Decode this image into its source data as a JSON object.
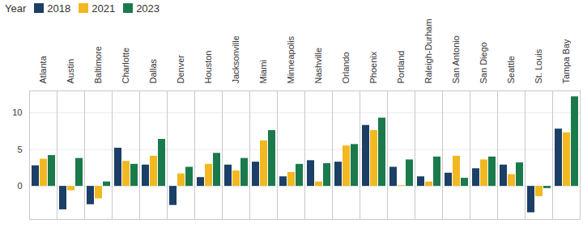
{
  "chart_data": {
    "type": "bar",
    "legend_title": "Year",
    "legend": "top-left",
    "grid": true,
    "categories": [
      "Atlanta",
      "Austin",
      "Baltimore",
      "Charlotte",
      "Dallas",
      "Denver",
      "Houston",
      "Jacksonville",
      "Miami",
      "Minneapolis",
      "Nashville",
      "Orlando",
      "Phoenix",
      "Portland",
      "Raleigh-Durham",
      "San Antonio",
      "San Diego",
      "Seattle",
      "St. Louis",
      "Tampa Bay"
    ],
    "series": [
      {
        "name": "2018",
        "color": "#1b3f66",
        "values": [
          2.8,
          -3.2,
          -2.5,
          5.2,
          2.9,
          -2.6,
          1.2,
          2.9,
          3.3,
          1.3,
          3.5,
          3.3,
          8.3,
          2.6,
          1.3,
          1.8,
          2.4,
          2.9,
          -3.6,
          7.8
        ]
      },
      {
        "name": "2021",
        "color": "#f2b822",
        "values": [
          3.7,
          -0.6,
          -1.7,
          3.4,
          4.1,
          1.7,
          3.0,
          2.1,
          6.2,
          1.9,
          0.6,
          5.5,
          7.6,
          0.1,
          0.6,
          4.1,
          3.6,
          1.6,
          -1.4,
          7.3
        ]
      },
      {
        "name": "2023",
        "color": "#1a7a4c",
        "values": [
          4.2,
          3.8,
          0.6,
          3.0,
          6.4,
          2.6,
          4.5,
          3.8,
          7.6,
          3.0,
          3.1,
          5.7,
          9.3,
          3.6,
          4.0,
          1.1,
          4.0,
          3.2,
          -0.3,
          12.2
        ]
      }
    ],
    "ylim": [
      -4.5,
      13
    ],
    "yticks": [
      0,
      5,
      10
    ]
  }
}
